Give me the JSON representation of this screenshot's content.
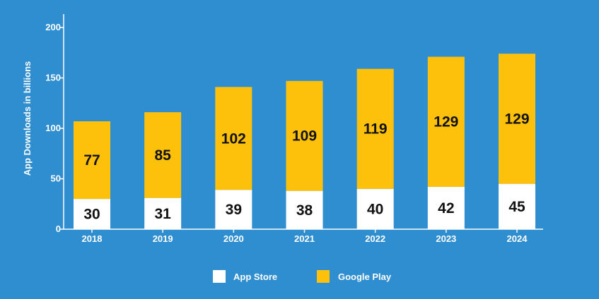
{
  "chart_data": {
    "type": "bar",
    "stacked": true,
    "categories": [
      "2018",
      "2019",
      "2020",
      "2021",
      "2022",
      "2023",
      "2024"
    ],
    "series": [
      {
        "name": "App Store",
        "values": [
          30,
          31,
          39,
          38,
          40,
          42,
          45
        ],
        "color": "#ffffff"
      },
      {
        "name": "Google Play",
        "values": [
          77,
          85,
          102,
          109,
          119,
          129,
          129
        ],
        "color": "#fec10b"
      }
    ],
    "ylabel": "App Downloads in billions",
    "ylim": [
      0,
      200
    ],
    "yticks": [
      "0",
      "50",
      "100",
      "150",
      "200"
    ],
    "grid": false,
    "legend": "bottom-center"
  }
}
